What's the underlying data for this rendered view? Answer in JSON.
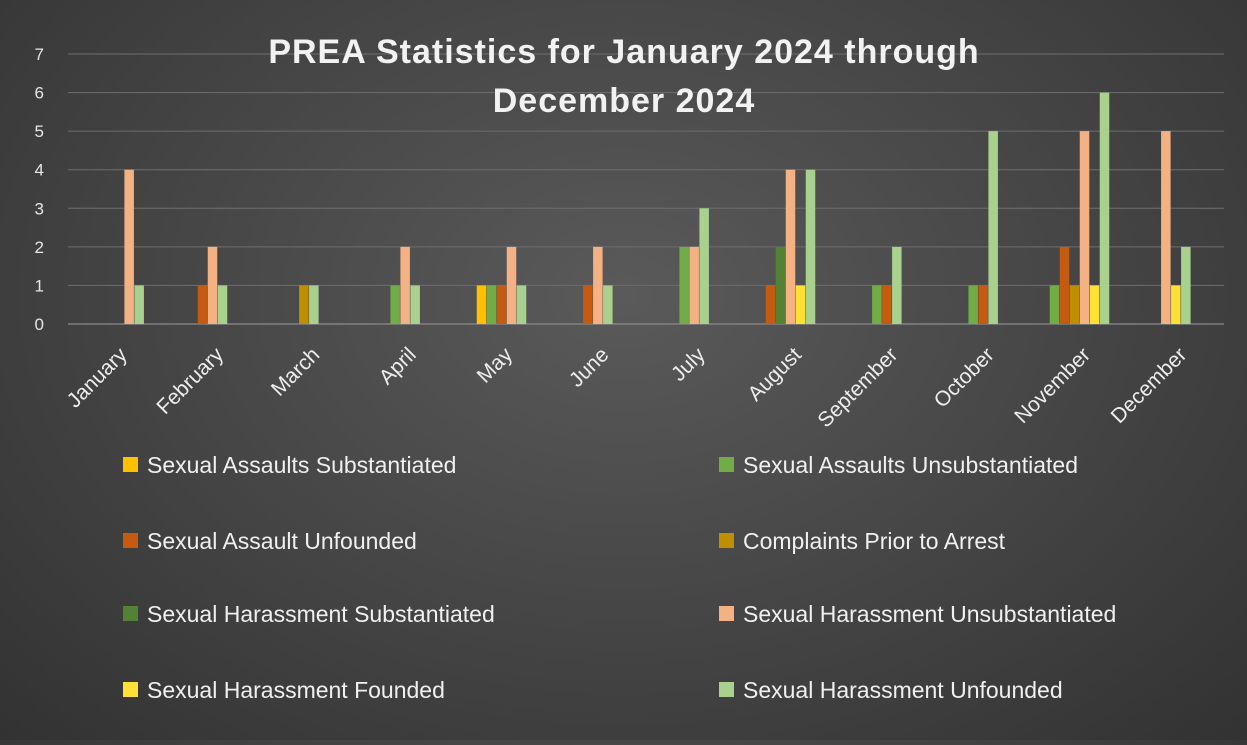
{
  "chart_data": {
    "type": "bar",
    "title": "PREA Statistics for January 2024 through December 2024",
    "title_lines": [
      "PREA Statistics for January 2024 through",
      "December 2024"
    ],
    "xlabel": "",
    "ylabel": "",
    "ylim": [
      0,
      7
    ],
    "yticks": [
      0,
      1,
      2,
      3,
      4,
      5,
      6,
      7
    ],
    "grid": true,
    "legend_position": "bottom",
    "categories": [
      "January",
      "February",
      "March",
      "April",
      "May",
      "June",
      "July",
      "August",
      "September",
      "October",
      "November",
      "December"
    ],
    "series": [
      {
        "name": "Sexual Assaults Substantiated",
        "color": "#FFC000",
        "values": [
          0,
          0,
          0,
          0,
          1,
          0,
          0,
          0,
          0,
          0,
          0,
          0
        ]
      },
      {
        "name": "Sexual Assaults Unsubstantiated",
        "color": "#70AD47",
        "values": [
          0,
          0,
          0,
          1,
          1,
          0,
          2,
          0,
          1,
          1,
          1,
          0
        ]
      },
      {
        "name": "Sexual Assault Unfounded",
        "color": "#C55A11",
        "values": [
          0,
          1,
          0,
          0,
          1,
          1,
          0,
          1,
          1,
          1,
          2,
          0
        ]
      },
      {
        "name": "Complaints Prior to Arrest",
        "color": "#BF8F00",
        "values": [
          0,
          0,
          1,
          0,
          0,
          0,
          0,
          0,
          0,
          0,
          1,
          0
        ]
      },
      {
        "name": "Sexual Harassment Substantiated",
        "color": "#548235",
        "values": [
          0,
          0,
          0,
          0,
          0,
          0,
          0,
          2,
          0,
          0,
          0,
          0
        ]
      },
      {
        "name": "Sexual Harassment Unsubstantiated",
        "color": "#F4B183",
        "values": [
          4,
          2,
          0,
          2,
          2,
          2,
          2,
          4,
          0,
          0,
          5,
          5
        ]
      },
      {
        "name": "Sexual Harassment Founded",
        "color": "#FFE135",
        "values": [
          0,
          0,
          0,
          0,
          0,
          0,
          0,
          1,
          0,
          0,
          1,
          1
        ]
      },
      {
        "name": "Sexual Harassment Unfounded",
        "color": "#A9D18E",
        "values": [
          1,
          1,
          1,
          1,
          1,
          1,
          3,
          4,
          2,
          5,
          6,
          2
        ]
      }
    ]
  }
}
